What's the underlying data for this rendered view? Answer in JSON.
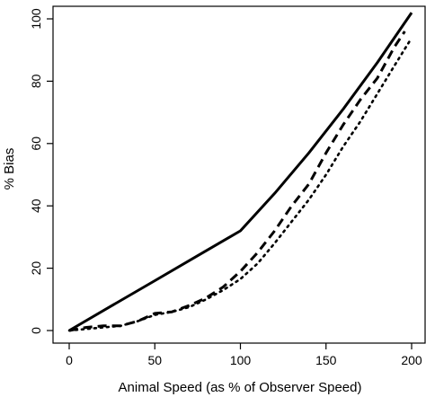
{
  "chart_data": {
    "type": "line",
    "title": "",
    "xlabel": "Animal Speed (as % of Observer Speed)",
    "ylabel": "% Bias",
    "xlim": [
      0,
      200
    ],
    "ylim": [
      0,
      100
    ],
    "xticks": [
      0,
      50,
      100,
      150,
      200
    ],
    "yticks": [
      0,
      20,
      40,
      60,
      80,
      100
    ],
    "grid": false,
    "legend": "none",
    "series": [
      {
        "style": "solid",
        "color": "#000000",
        "x": [
          0,
          25,
          50,
          75,
          100,
          120,
          140,
          160,
          180,
          200
        ],
        "y": [
          0,
          8,
          16,
          24,
          32,
          44,
          57,
          71,
          86,
          102
        ]
      },
      {
        "style": "dashed",
        "color": "#000000",
        "x": [
          0,
          10,
          20,
          30,
          40,
          50,
          60,
          70,
          80,
          90,
          100,
          110,
          120,
          130,
          140,
          150,
          160,
          170,
          180,
          190,
          196
        ],
        "y": [
          0,
          1,
          1.5,
          1.5,
          3,
          5.5,
          6,
          8,
          10.5,
          14,
          19,
          25,
          32,
          40,
          47,
          57,
          66,
          74,
          81,
          91,
          96
        ]
      },
      {
        "style": "dotted",
        "color": "#000000",
        "x": [
          0,
          10,
          20,
          30,
          40,
          50,
          60,
          70,
          80,
          90,
          100,
          110,
          120,
          130,
          140,
          150,
          160,
          170,
          180,
          190,
          199
        ],
        "y": [
          0,
          0.5,
          1,
          1.5,
          3,
          5,
          6,
          7.5,
          10,
          13,
          16.5,
          21.5,
          28,
          35,
          42,
          50,
          59,
          67,
          76,
          85,
          93
        ]
      }
    ]
  }
}
